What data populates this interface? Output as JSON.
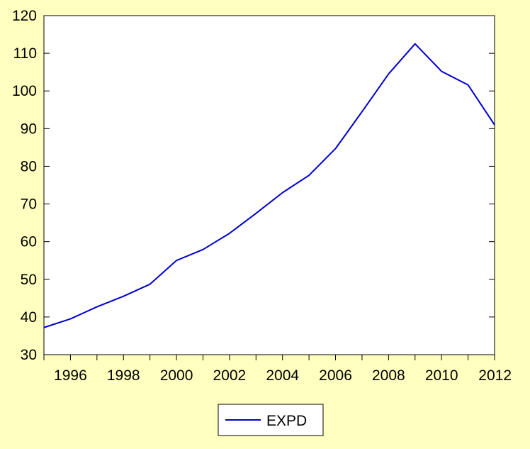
{
  "chart_data": {
    "type": "line",
    "title": "",
    "xlabel": "",
    "ylabel": "",
    "xlim": [
      1995,
      2012
    ],
    "ylim": [
      30,
      120
    ],
    "y_ticks": [
      30,
      40,
      50,
      60,
      70,
      80,
      90,
      100,
      110,
      120
    ],
    "x_ticks": [
      1996,
      1998,
      2000,
      2002,
      2004,
      2006,
      2008,
      2010,
      2012
    ],
    "grid": false,
    "legend_position": "bottom-center",
    "background_color": "#FFFFC0",
    "plot_background_color": "#FFFFFF",
    "x": [
      1995,
      1996,
      1997,
      1998,
      1999,
      2000,
      2001,
      2002,
      2003,
      2004,
      2005,
      2006,
      2007,
      2008,
      2009,
      2010,
      2011,
      2012
    ],
    "series": [
      {
        "name": "EXPD",
        "color": "#0000CC",
        "values": [
          37.2,
          39.5,
          42.7,
          45.5,
          48.7,
          55.0,
          57.9,
          62.2,
          67.5,
          73.0,
          77.6,
          84.7,
          94.5,
          104.5,
          112.5,
          105.2,
          101.6,
          91.0
        ]
      }
    ]
  }
}
